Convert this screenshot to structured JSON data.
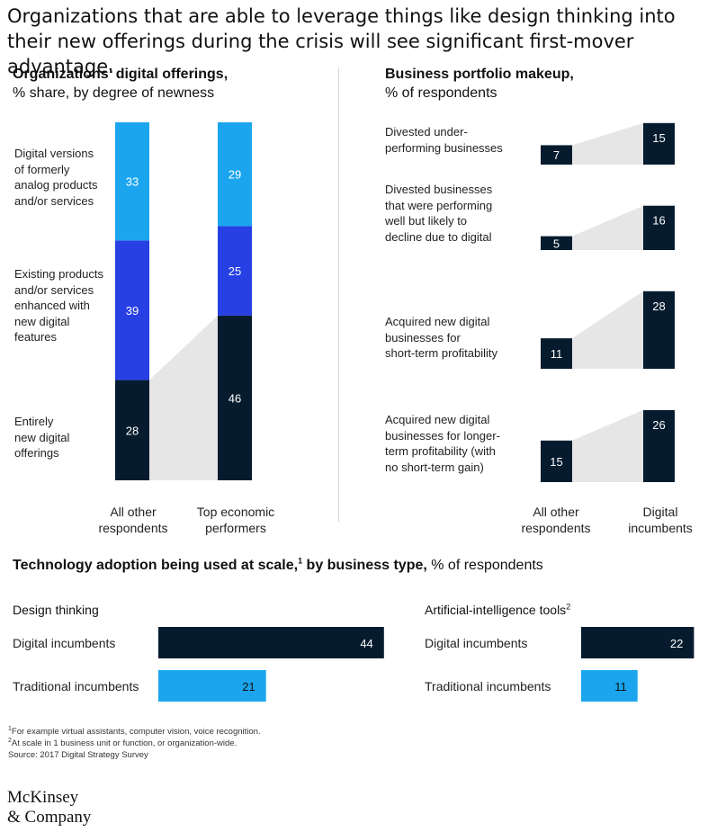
{
  "headline": "Organizations that are able to leverage things like design thinking into their new offerings during the crisis will see significant first-mover advantage.",
  "colors": {
    "dark_navy": "#061c2e",
    "royal_blue": "#2640e4",
    "light_blue": "#1ba5ee",
    "bridge_gray": "#e6e6e6"
  },
  "chart_data": [
    {
      "type": "bar",
      "subtype": "stacked",
      "title": "Organizations’ digital offerings,",
      "subtitle": "% share, by degree of newness",
      "categories": [
        "All other respondents",
        "Top economic performers"
      ],
      "series": [
        {
          "name": "Entirely new digital offerings",
          "values": [
            28,
            46
          ],
          "color": "#061c2e"
        },
        {
          "name": "Existing products and/or services enhanced with new digital features",
          "values": [
            39,
            25
          ],
          "color": "#2640e4"
        },
        {
          "name": "Digital versions of formerly analog products and/or services",
          "values": [
            33,
            29
          ],
          "color": "#1ba5ee"
        }
      ]
    },
    {
      "type": "bar",
      "title": "Business portfolio makeup,",
      "subtitle": "% of respondents",
      "categories": [
        "All other respondents",
        "Digital incumbents"
      ],
      "rows": [
        {
          "label": "Divested under-performing businesses",
          "values": [
            7,
            15
          ]
        },
        {
          "label": "Divested businesses that were performing well but likely to decline due to digital",
          "values": [
            5,
            16
          ]
        },
        {
          "label": "Acquired new digital businesses for short-term profitability",
          "values": [
            11,
            28
          ]
        },
        {
          "label": "Acquired new digital businesses for longer-term profitability (with no short-term gain)",
          "values": [
            15,
            26
          ]
        }
      ]
    },
    {
      "type": "bar",
      "orientation": "horizontal",
      "title": "Design thinking",
      "categories": [
        "Digital incumbents",
        "Traditional incumbents"
      ],
      "values": [
        44,
        21
      ]
    },
    {
      "type": "bar",
      "orientation": "horizontal",
      "title": "Artificial-intelligence tools",
      "title_sup": "2",
      "categories": [
        "Digital incumbents",
        "Traditional incumbents"
      ],
      "values": [
        22,
        11
      ]
    }
  ],
  "offerings": {
    "label_lines": [
      [
        "Digital versions",
        "of formerly",
        "analog products",
        "and/or services"
      ],
      [
        "Existing products",
        "and/or services",
        "enhanced with",
        "new digital",
        "features"
      ],
      [
        "Entirely",
        "new digital",
        "offerings"
      ]
    ],
    "axis_lines": [
      [
        "All other",
        "respondents"
      ],
      [
        "Top economic",
        "performers"
      ]
    ]
  },
  "portfolio": {
    "label_lines": [
      [
        "Divested under-",
        "performing businesses"
      ],
      [
        "Divested businesses",
        "that were performing",
        "well but likely to",
        "decline due to digital"
      ],
      [
        "Acquired new digital",
        "businesses for",
        "short-term profitability"
      ],
      [
        "Acquired new digital",
        "businesses for longer-",
        "term profitability (with",
        "no short-term gain)"
      ]
    ],
    "axis_lines": [
      [
        "All other",
        "respondents"
      ],
      [
        "Digital",
        "incumbents"
      ]
    ]
  },
  "tech": {
    "title_bold": "Technology adoption being used at scale,",
    "title_sup": "1",
    "title_bold2": " by business type,",
    "title_normal": " % of respondents"
  },
  "footnotes": [
    {
      "sup": "1",
      "text": "For example virtual assistants, computer vision, voice recognition."
    },
    {
      "sup": "2",
      "text": "At scale in 1 business unit or function, or organization-wide."
    },
    {
      "sup": "",
      "text": " Source: 2017 Digital Strategy Survey"
    }
  ],
  "logo": {
    "line1": "McKinsey",
    "line2": "& Company"
  }
}
